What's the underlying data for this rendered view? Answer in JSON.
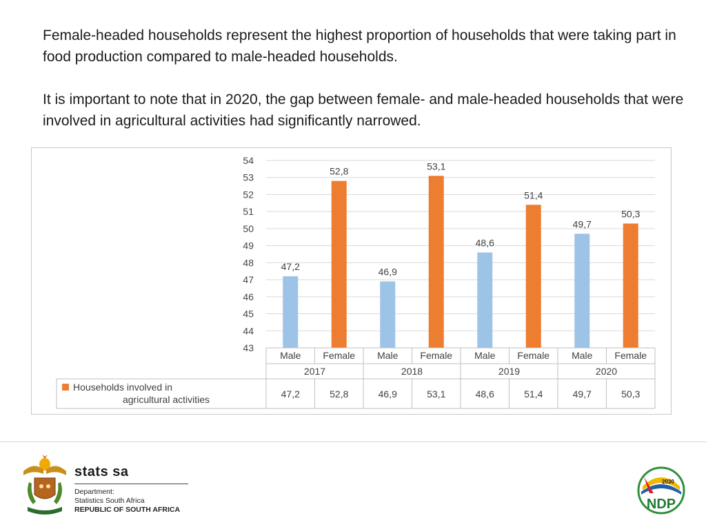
{
  "slide": {
    "paragraph1": "Female-headed households represent the highest proportion of households that were taking part in food production compared to male-headed households.",
    "paragraph2": "It is important to note that in 2020, the gap between female- and male-headed households that were involved in agricultural activities had significantly narrowed."
  },
  "chart_data": {
    "type": "bar",
    "y_ticks": [
      "54",
      "53",
      "52",
      "51",
      "50",
      "49",
      "48",
      "47",
      "46",
      "45",
      "44",
      "43"
    ],
    "ylim": [
      43,
      54
    ],
    "categories": [
      "Male",
      "Female",
      "Male",
      "Female",
      "Male",
      "Female",
      "Male",
      "Female"
    ],
    "groups": [
      "2017",
      "2018",
      "2019",
      "2020"
    ],
    "values": [
      47.2,
      52.8,
      46.9,
      53.1,
      48.6,
      51.4,
      49.7,
      50.3
    ],
    "value_labels": [
      "47,2",
      "52,8",
      "46,9",
      "53,1",
      "48,6",
      "51,4",
      "49,7",
      "50,3"
    ],
    "series": [
      {
        "name": "Households involved in agricultural activities"
      }
    ],
    "colors": {
      "Male": "#9DC3E6",
      "Female": "#ED7D31",
      "grid": "#d9d9d9",
      "table": "#bfbfbf"
    },
    "grid": true,
    "legend": "data table"
  },
  "footer": {
    "brand": "stats sa",
    "dept_line1": "Department:",
    "dept_line2": "Statistics South Africa",
    "dept_line3": "REPUBLIC OF SOUTH AFRICA",
    "ndp_text": "NDP",
    "ndp_year": "2030"
  }
}
